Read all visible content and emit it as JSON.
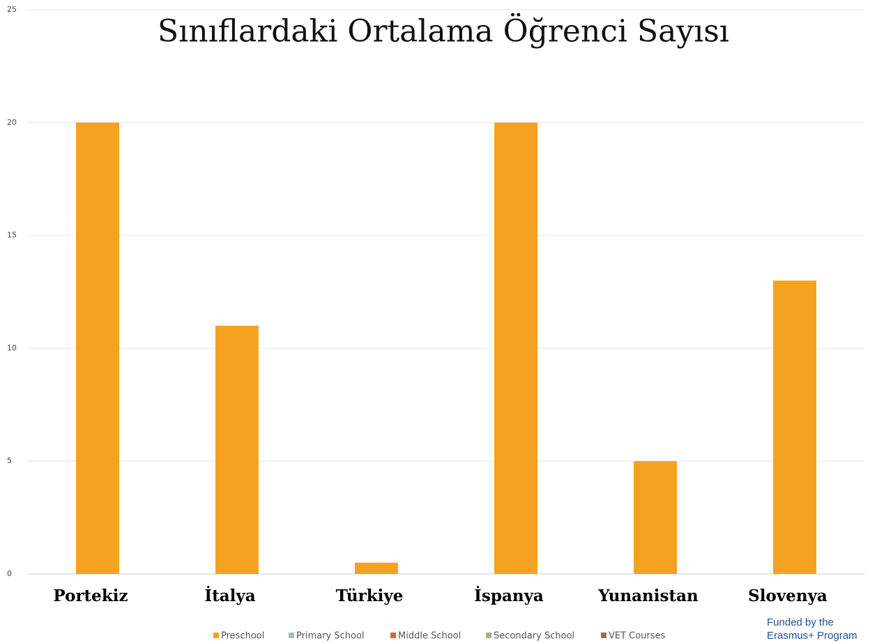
{
  "chart_data": {
    "type": "bar",
    "title": "Sınıflardaki Ortalama Öğrenci Sayısı",
    "categories": [
      "Portekiz",
      "İtalya",
      "Türkiye",
      "İspanya",
      "Yunanistan",
      "Slovenya"
    ],
    "series": [
      {
        "name": "Preschool",
        "color": "#f5a221",
        "values": [
          20,
          11,
          0.5,
          20,
          5,
          13
        ]
      },
      {
        "name": "Primary School",
        "color": "#a7b9c9",
        "values": [
          null,
          null,
          null,
          null,
          null,
          null
        ]
      },
      {
        "name": "Middle School",
        "color": "#d2682e",
        "values": [
          null,
          null,
          null,
          null,
          null,
          null
        ]
      },
      {
        "name": "Secondary School",
        "color": "#a3b08c",
        "values": [
          null,
          null,
          null,
          null,
          null,
          null
        ]
      },
      {
        "name": "VET Courses",
        "color": "#8a7452",
        "values": [
          null,
          null,
          null,
          null,
          null,
          null
        ]
      }
    ],
    "ylim": [
      0,
      25
    ],
    "yticks": [
      0,
      5,
      10,
      15,
      20,
      25
    ],
    "grid": true,
    "legend": "bottom",
    "footer": [
      "Funded by the",
      "Erasmus+ Program"
    ]
  }
}
